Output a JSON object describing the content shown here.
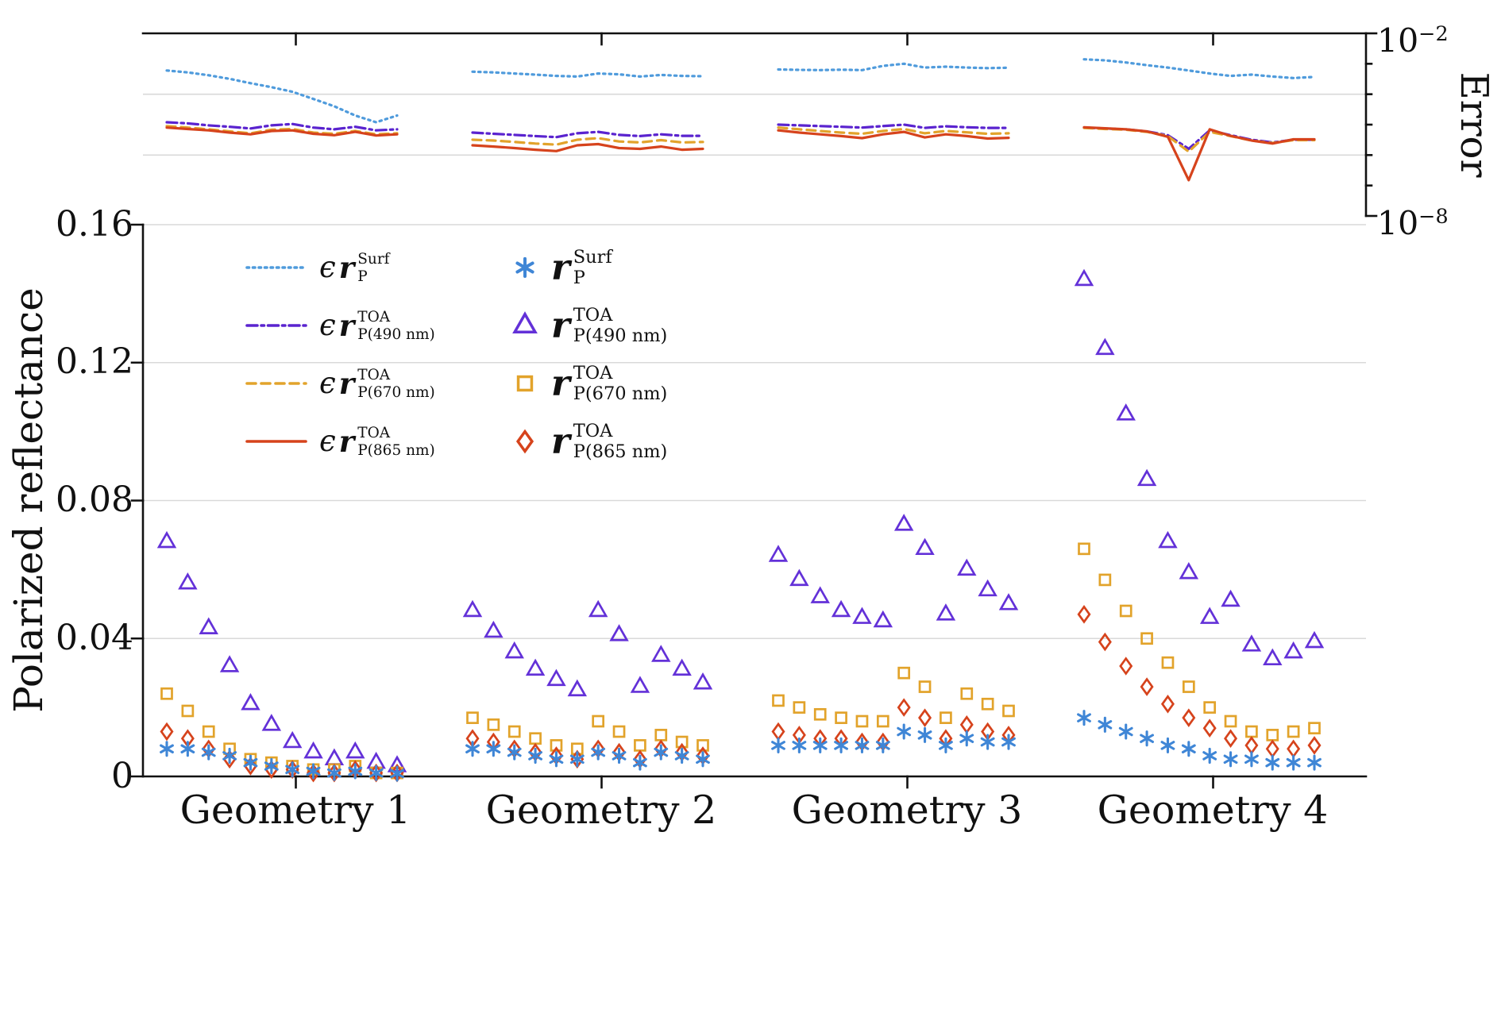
{
  "chart_data": {
    "type": "line+scatter",
    "geometries": [
      "Geometry 1",
      "Geometry 2",
      "Geometry 3",
      "Geometry 4"
    ],
    "points_per_geometry": 12,
    "style": {
      "grid": "#d9d9d9",
      "axis": "#111111",
      "background": "#ffffff"
    },
    "error_panel": {
      "ylabel": "Error",
      "yscale": "log",
      "ylim": [
        1e-08,
        0.01
      ],
      "grid_values": [
        0.0001,
        1e-06
      ],
      "tick_labels": [
        {
          "base": "10",
          "exp": "−2"
        },
        {
          "base": "10",
          "exp": "−8"
        }
      ],
      "series": [
        {
          "name": "epsilon r_P^Surf",
          "style": "dotted",
          "color": "#4f9bdc",
          "segments": [
            [
              0.0006,
              0.00052,
              0.00042,
              0.00032,
              0.00023,
              0.00017,
              0.00012,
              7e-05,
              4e-05,
              2e-05,
              1.2e-05,
              2e-05
            ],
            [
              0.00055,
              0.00052,
              0.00048,
              0.00044,
              0.0004,
              0.00038,
              0.00048,
              0.00045,
              0.00038,
              0.00043,
              0.0004,
              0.00039
            ],
            [
              0.00065,
              0.00063,
              0.00062,
              0.00064,
              0.00062,
              0.00085,
              0.001,
              0.00075,
              0.0008,
              0.00075,
              0.00072,
              0.00074
            ],
            [
              0.0014,
              0.0013,
              0.0011,
              0.0009,
              0.00075,
              0.0006,
              0.00048,
              0.0004,
              0.00044,
              0.00038,
              0.00034,
              0.00037
            ]
          ]
        },
        {
          "name": "epsilon r_P(490 nm)^TOA",
          "style": "dashdot",
          "color": "#5a23cf",
          "segments": [
            [
              1.2e-05,
              1.1e-05,
              9.5e-06,
              8.5e-06,
              7.5e-06,
              9.5e-06,
              1.05e-05,
              8e-06,
              7e-06,
              8.5e-06,
              6.5e-06,
              7e-06
            ],
            [
              5.5e-06,
              5e-06,
              4.6e-06,
              4.2e-06,
              3.9e-06,
              5.2e-06,
              5.8e-06,
              4.6e-06,
              4.2e-06,
              4.8e-06,
              4.3e-06,
              4.3e-06
            ],
            [
              1e-05,
              9.5e-06,
              9e-06,
              8.5e-06,
              8e-06,
              9e-06,
              1e-05,
              7.8e-06,
              8.8e-06,
              8.2e-06,
              7.8e-06,
              7.8e-06
            ],
            [
              8e-06,
              7.5e-06,
              7e-06,
              6e-06,
              4.5e-06,
              1.6e-06,
              6.5e-06,
              4.5e-06,
              3.2e-06,
              2.6e-06,
              3.2e-06,
              3.2e-06
            ]
          ]
        },
        {
          "name": "epsilon r_P(670 nm)^TOA",
          "style": "dashed",
          "color": "#e2a32b",
          "segments": [
            [
              9e-06,
              8e-06,
              7e-06,
              6e-06,
              5.2e-06,
              6.8e-06,
              7.2e-06,
              5.5e-06,
              5e-06,
              6.2e-06,
              4.8e-06,
              5.2e-06
            ],
            [
              3.2e-06,
              3e-06,
              2.7e-06,
              2.4e-06,
              2.2e-06,
              3.2e-06,
              3.6e-06,
              2.8e-06,
              2.6e-06,
              3.1e-06,
              2.6e-06,
              2.7e-06
            ],
            [
              8e-06,
              7e-06,
              6.2e-06,
              5.5e-06,
              5e-06,
              6.2e-06,
              7.2e-06,
              5.2e-06,
              6.2e-06,
              5.6e-06,
              5e-06,
              5.2e-06
            ],
            [
              7.8e-06,
              7.2e-06,
              6.8e-06,
              5.8e-06,
              4.2e-06,
              1.3e-06,
              5.8e-06,
              4.2e-06,
              3e-06,
              2.5e-06,
              3.1e-06,
              3.1e-06
            ]
          ]
        },
        {
          "name": "epsilon r_P(865 nm)^TOA",
          "style": "solid",
          "color": "#d6431c",
          "segments": [
            [
              8e-06,
              7.2e-06,
              6.5e-06,
              5.5e-06,
              4.8e-06,
              6.2e-06,
              6.5e-06,
              5e-06,
              4.5e-06,
              5.8e-06,
              4.4e-06,
              4.8e-06
            ],
            [
              2.1e-06,
              1.9e-06,
              1.7e-06,
              1.5e-06,
              1.35e-06,
              2.1e-06,
              2.3e-06,
              1.7e-06,
              1.6e-06,
              1.9e-06,
              1.5e-06,
              1.6e-06
            ],
            [
              6.5e-06,
              5.5e-06,
              4.8e-06,
              4.2e-06,
              3.6e-06,
              4.8e-06,
              5.8e-06,
              3.8e-06,
              4.8e-06,
              4.2e-06,
              3.5e-06,
              3.7e-06
            ],
            [
              8.2e-06,
              7.6e-06,
              7e-06,
              6e-06,
              4e-06,
              1.5e-07,
              7e-06,
              4.3e-06,
              3e-06,
              2.4e-06,
              3.3e-06,
              3.3e-06
            ]
          ]
        }
      ]
    },
    "reflectance_panel": {
      "ylabel": "Polarized reflectance",
      "ylim": [
        0,
        0.16
      ],
      "tick_values": [
        0,
        0.04,
        0.08,
        0.12,
        0.16
      ],
      "tick_labels": [
        "0",
        "0.04",
        "0.08",
        "0.12",
        "0.16"
      ],
      "grid_values": [
        0.04,
        0.08,
        0.12,
        0.16
      ],
      "series": [
        {
          "name": "r_P^Surf",
          "marker": "asterisk",
          "color": "#3f86d6",
          "groups": [
            [
              0.008,
              0.008,
              0.007,
              0.006,
              0.004,
              0.003,
              0.002,
              0.0015,
              0.001,
              0.0015,
              0.001,
              0.0008
            ],
            [
              0.008,
              0.008,
              0.007,
              0.006,
              0.005,
              0.005,
              0.007,
              0.006,
              0.004,
              0.007,
              0.006,
              0.005
            ],
            [
              0.009,
              0.009,
              0.009,
              0.009,
              0.009,
              0.009,
              0.013,
              0.012,
              0.009,
              0.011,
              0.01,
              0.01
            ],
            [
              0.017,
              0.015,
              0.013,
              0.011,
              0.009,
              0.008,
              0.006,
              0.005,
              0.005,
              0.004,
              0.004,
              0.004
            ]
          ]
        },
        {
          "name": "r_P(490 nm)^TOA",
          "marker": "triangle",
          "color": "#6331d8",
          "groups": [
            [
              0.068,
              0.056,
              0.043,
              0.032,
              0.021,
              0.015,
              0.01,
              0.007,
              0.005,
              0.007,
              0.004,
              0.003
            ],
            [
              0.048,
              0.042,
              0.036,
              0.031,
              0.028,
              0.025,
              0.048,
              0.041,
              0.026,
              0.035,
              0.031,
              0.027
            ],
            [
              0.064,
              0.057,
              0.052,
              0.048,
              0.046,
              0.045,
              0.073,
              0.066,
              0.047,
              0.06,
              0.054,
              0.05
            ],
            [
              0.144,
              0.124,
              0.105,
              0.086,
              0.068,
              0.059,
              0.046,
              0.051,
              0.038,
              0.034,
              0.036,
              0.039
            ]
          ]
        },
        {
          "name": "r_P(670 nm)^TOA",
          "marker": "square",
          "color": "#e2a32b",
          "groups": [
            [
              0.024,
              0.019,
              0.013,
              0.008,
              0.005,
              0.004,
              0.003,
              0.002,
              0.002,
              0.003,
              0.001,
              0.001
            ],
            [
              0.017,
              0.015,
              0.013,
              0.011,
              0.009,
              0.008,
              0.016,
              0.013,
              0.009,
              0.012,
              0.01,
              0.009
            ],
            [
              0.022,
              0.02,
              0.018,
              0.017,
              0.016,
              0.016,
              0.03,
              0.026,
              0.017,
              0.024,
              0.021,
              0.019
            ],
            [
              0.066,
              0.057,
              0.048,
              0.04,
              0.033,
              0.026,
              0.02,
              0.016,
              0.013,
              0.012,
              0.013,
              0.014
            ]
          ]
        },
        {
          "name": "r_P(865 nm)^TOA",
          "marker": "diamond",
          "color": "#d6431c",
          "groups": [
            [
              0.013,
              0.011,
              0.008,
              0.005,
              0.003,
              0.002,
              0.002,
              0.001,
              0.001,
              0.002,
              0.001,
              0.001
            ],
            [
              0.011,
              0.01,
              0.008,
              0.007,
              0.006,
              0.005,
              0.008,
              0.007,
              0.005,
              0.008,
              0.007,
              0.006
            ],
            [
              0.013,
              0.012,
              0.011,
              0.011,
              0.01,
              0.01,
              0.02,
              0.017,
              0.011,
              0.015,
              0.013,
              0.012
            ],
            [
              0.047,
              0.039,
              0.032,
              0.026,
              0.021,
              0.017,
              0.014,
              0.011,
              0.009,
              0.008,
              0.008,
              0.009
            ]
          ]
        }
      ]
    }
  },
  "legend": {
    "lines": [
      {
        "prefix": "ϵ",
        "symbol": "r",
        "sup": "Surf",
        "sub": "P"
      },
      {
        "prefix": "ϵ",
        "symbol": "r",
        "sup": "TOA",
        "sub": "P(490 nm)"
      },
      {
        "prefix": "ϵ",
        "symbol": "r",
        "sup": "TOA",
        "sub": "P(670 nm)"
      },
      {
        "prefix": "ϵ",
        "symbol": "r",
        "sup": "TOA",
        "sub": "P(865 nm)"
      }
    ],
    "markers": [
      {
        "symbol": "r",
        "sup": "Surf",
        "sub": "P"
      },
      {
        "symbol": "r",
        "sup": "TOA",
        "sub": "P(490 nm)"
      },
      {
        "symbol": "r",
        "sup": "TOA",
        "sub": "P(670 nm)"
      },
      {
        "symbol": "r",
        "sup": "TOA",
        "sub": "P(865 nm)"
      }
    ]
  }
}
